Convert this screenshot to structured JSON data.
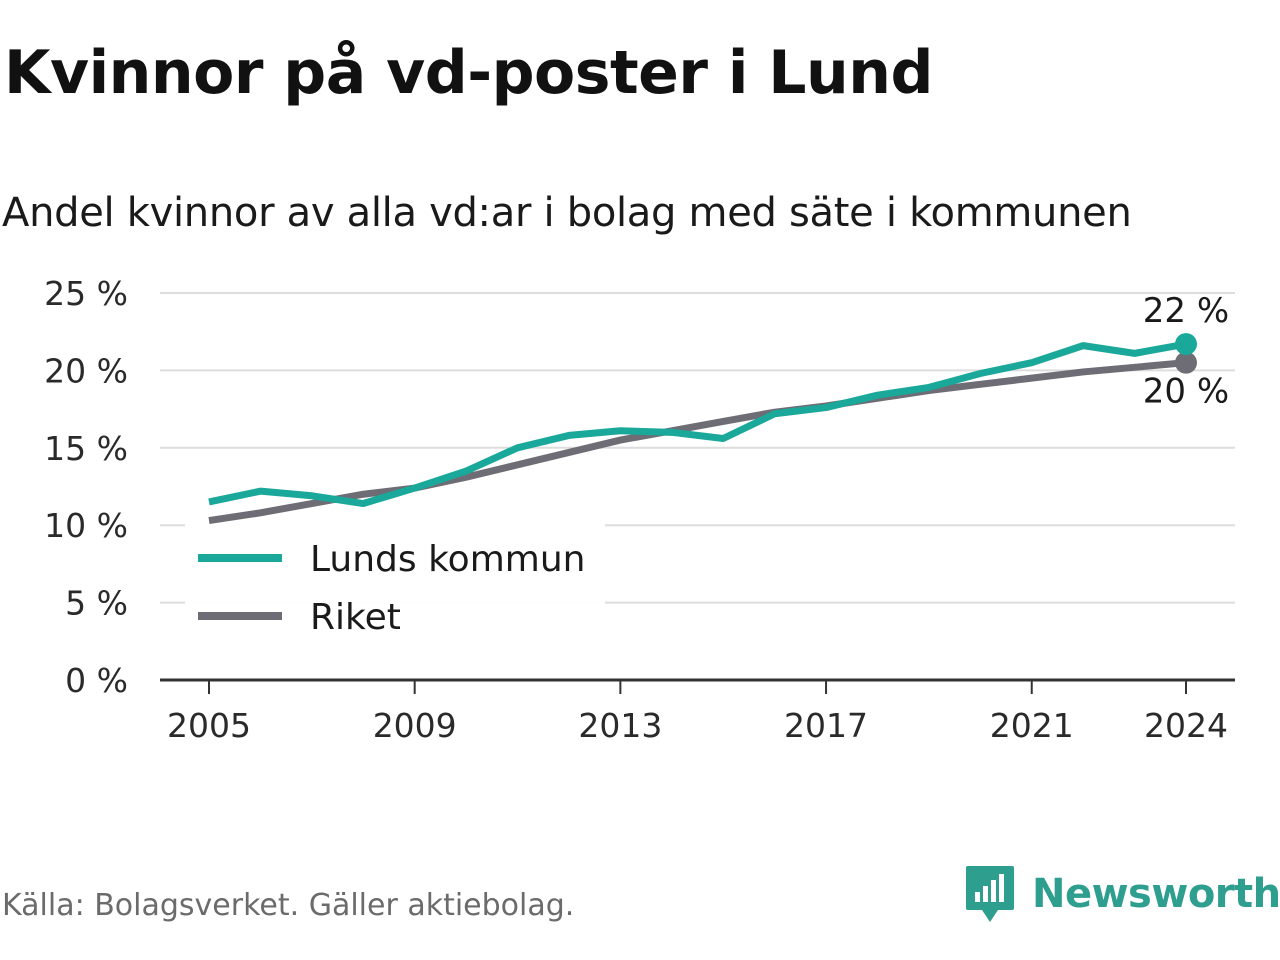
{
  "title": "Kvinnor på vd-poster i Lund",
  "subtitle": "Andel kvinnor av alla vd:ar i bolag med säte i kommunen",
  "source": "Källa: Bolagsverket. Gäller aktiebolag.",
  "brand": "Newsworthy",
  "colors": {
    "lund": "#1aa89a",
    "riket": "#6e6d75",
    "grid": "#dddddd",
    "axis": "#333333",
    "brand": "#2e9e8f"
  },
  "chart_data": {
    "type": "line",
    "title": "Kvinnor på vd-poster i Lund",
    "subtitle": "Andel kvinnor av alla vd:ar i bolag med säte i kommunen",
    "x": [
      2005,
      2006,
      2007,
      2008,
      2009,
      2010,
      2011,
      2012,
      2013,
      2014,
      2015,
      2016,
      2017,
      2018,
      2019,
      2020,
      2021,
      2022,
      2023,
      2024
    ],
    "x_ticks": [
      "2005",
      "2009",
      "2013",
      "2017",
      "2021",
      "2024"
    ],
    "y_ticks": [
      "0 %",
      "5 %",
      "10 %",
      "15 %",
      "20 %",
      "25 %"
    ],
    "ylim": [
      0,
      25
    ],
    "grid": true,
    "legend_position": "bottom-left",
    "series": [
      {
        "name": "Lunds kommun",
        "color": "#1aa89a",
        "values": [
          11.5,
          12.2,
          11.9,
          11.4,
          12.4,
          13.5,
          15.0,
          15.8,
          16.1,
          16.0,
          15.6,
          17.2,
          17.6,
          18.4,
          18.9,
          19.8,
          20.5,
          21.6,
          21.1,
          21.7
        ],
        "end_label": "22 %"
      },
      {
        "name": "Riket",
        "color": "#6e6d75",
        "values": [
          10.3,
          10.8,
          11.4,
          12.0,
          12.4,
          13.1,
          13.9,
          14.7,
          15.5,
          16.1,
          16.7,
          17.3,
          17.7,
          18.2,
          18.7,
          19.1,
          19.5,
          19.9,
          20.2,
          20.5
        ],
        "end_label": "20 %"
      }
    ]
  }
}
